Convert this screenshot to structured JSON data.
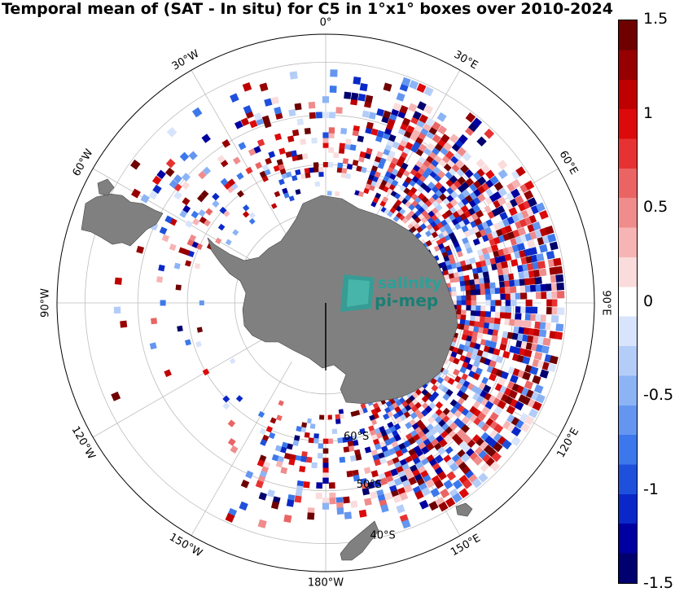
{
  "title": "Temporal mean of (SAT - In situ) for C5 in 1°x1° boxes over 2010-2024",
  "logo": {
    "line1": "salinity",
    "line2": "pi-mep"
  },
  "colorbar": {
    "min": -1.5,
    "max": 1.5,
    "tick_labels": [
      "1.5",
      "1",
      "0.5",
      "0",
      "-0.5",
      "-1",
      "-1.5"
    ],
    "tick_values": [
      1.5,
      1.0,
      0.5,
      0.0,
      -0.5,
      -1.0,
      -1.5
    ],
    "colors": [
      "#00006e",
      "#0000a0",
      "#0a28c8",
      "#1e50dc",
      "#3c78eb",
      "#6496f0",
      "#8cb4f5",
      "#b4cdf8",
      "#d7e4fb",
      "#ffffff",
      "#fadcdc",
      "#f7b4b4",
      "#f08c8c",
      "#eb6464",
      "#e63232",
      "#dc0a0a",
      "#be0000",
      "#960000",
      "#6e0000"
    ]
  },
  "longitude_labels": [
    {
      "text": "30°E",
      "deg": 30
    },
    {
      "text": "60°E",
      "deg": 60
    },
    {
      "text": "90°E",
      "deg": 90
    },
    {
      "text": "120°E",
      "deg": 120
    },
    {
      "text": "150°E",
      "deg": 150
    },
    {
      "text": "180°W",
      "deg": 180
    },
    {
      "text": "150°W",
      "deg": 210
    },
    {
      "text": "120°W",
      "deg": 240
    },
    {
      "text": "90°W",
      "deg": 270
    },
    {
      "text": "60°W",
      "deg": 300
    },
    {
      "text": "30°W",
      "deg": 330
    },
    {
      "text": "0°",
      "deg": 0
    }
  ],
  "latitude_labels": [
    {
      "text": "60°S",
      "lat": -60
    },
    {
      "text": "50°S",
      "lat": -50
    },
    {
      "text": "40°S",
      "lat": -40
    }
  ],
  "chart_data": {
    "type": "heatmap",
    "projection": "south polar stereographic",
    "variable": "SAT - In situ",
    "value_range": [
      -1.5,
      1.5
    ],
    "lat_range": [
      -90,
      -35
    ]
  }
}
